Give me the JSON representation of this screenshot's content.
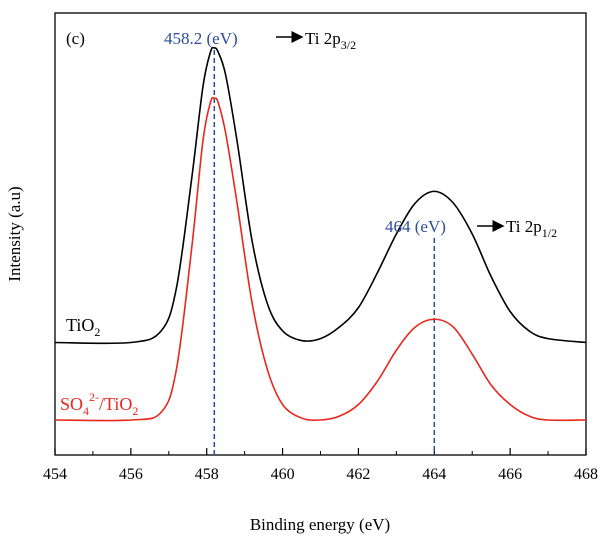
{
  "panel_label": "(c)",
  "chart_data": {
    "type": "line",
    "xlabel": "Binding energy (eV)",
    "ylabel": "Intensity (a.u)",
    "xlim": [
      454,
      468
    ],
    "x_ticks": [
      454,
      456,
      458,
      460,
      462,
      464,
      466,
      468
    ],
    "y_ticks_shown": false,
    "grid": false,
    "series": [
      {
        "name": "TiO2",
        "name_main": "TiO",
        "name_sub": "2",
        "color": "#000000",
        "x": [
          454,
          456,
          456.8,
          457.2,
          457.6,
          457.9,
          458.1,
          458.2,
          458.3,
          458.5,
          458.8,
          459.2,
          459.6,
          460,
          460.5,
          461,
          461.5,
          462,
          462.5,
          463,
          463.5,
          464,
          464.5,
          465,
          465.5,
          466,
          466.5,
          467,
          468
        ],
        "y": [
          0.24,
          0.24,
          0.27,
          0.38,
          0.66,
          0.9,
          0.99,
          1.0,
          0.99,
          0.93,
          0.76,
          0.5,
          0.34,
          0.27,
          0.245,
          0.25,
          0.28,
          0.33,
          0.42,
          0.52,
          0.6,
          0.63,
          0.6,
          0.52,
          0.41,
          0.32,
          0.27,
          0.25,
          0.24
        ]
      },
      {
        "name": "SO42-/TiO2",
        "name_main1": "SO",
        "name_sub1": "4",
        "name_sup1": "2-",
        "name_main2": "/TiO",
        "name_sub2": "2",
        "color": "#e8281e",
        "x": [
          454,
          456,
          456.8,
          457.2,
          457.6,
          457.9,
          458.1,
          458.2,
          458.3,
          458.5,
          458.8,
          459.2,
          459.6,
          460,
          460.5,
          461,
          461.5,
          462,
          462.5,
          463,
          463.5,
          464,
          464.5,
          465,
          465.5,
          466,
          466.5,
          467,
          468
        ],
        "y": [
          0.04,
          0.04,
          0.06,
          0.17,
          0.48,
          0.76,
          0.86,
          0.87,
          0.86,
          0.78,
          0.6,
          0.34,
          0.17,
          0.08,
          0.045,
          0.04,
          0.05,
          0.08,
          0.14,
          0.22,
          0.28,
          0.3,
          0.28,
          0.21,
          0.13,
          0.08,
          0.05,
          0.04,
          0.04
        ]
      }
    ],
    "reference_lines": [
      {
        "x": 458.2,
        "label": "458.2 (eV)",
        "color": "#2e4a9e"
      },
      {
        "x": 464,
        "label": "464 (eV)",
        "color": "#2e4a9e"
      }
    ],
    "annotations": [
      {
        "text_main": "Ti 2p",
        "text_sub": "3/2",
        "points_to": 458.2
      },
      {
        "text_main": "Ti 2p",
        "text_sub": "1/2",
        "points_to": 464
      }
    ]
  }
}
